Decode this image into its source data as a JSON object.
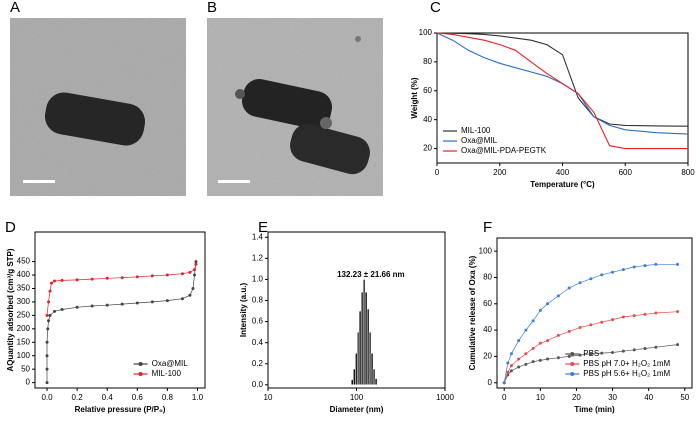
{
  "images": [
    {
      "label": "A"
    },
    {
      "label": "B"
    }
  ],
  "chart_data": [
    {
      "label": "C",
      "type": "line",
      "xlabel": "Temperature (°C)",
      "ylabel": "Weight (%)",
      "xlim": [
        0,
        800
      ],
      "ylim": [
        10,
        100
      ],
      "xticks": [
        0,
        200,
        400,
        600,
        800
      ],
      "yticks": [
        20,
        40,
        60,
        80,
        100
      ],
      "legend": "lower left",
      "marker": false,
      "x": [
        0,
        50,
        100,
        150,
        200,
        250,
        300,
        350,
        400,
        450,
        500,
        550,
        600,
        700,
        800
      ],
      "series": [
        {
          "name": "MIL-100",
          "color": "#333333",
          "values": [
            100,
            99.8,
            99.5,
            99,
            98,
            96.5,
            95,
            92,
            85,
            55,
            42,
            37,
            36,
            35.7,
            35.5
          ]
        },
        {
          "name": "Oxa@MIL",
          "color": "#2a6fc9",
          "values": [
            100,
            95,
            88,
            83,
            79,
            76,
            73,
            70,
            65,
            58,
            42,
            36,
            33,
            31,
            30
          ]
        },
        {
          "name": "Oxa@MIL-PDA-PEGTK",
          "color": "#e8202a",
          "values": [
            100,
            99,
            97,
            95,
            92,
            88,
            80,
            72,
            65,
            58,
            45,
            22,
            20,
            20,
            20
          ]
        }
      ]
    },
    {
      "label": "D",
      "type": "line",
      "xlabel": "Relative pressure (P/P₀)",
      "ylabel": "AQuantity adsorbed (cm³/g STP)",
      "xlim": [
        -0.08,
        1.05
      ],
      "ylim": [
        -20,
        560
      ],
      "xticks": [
        {
          "value": 0,
          "label": "0.0"
        },
        0.2,
        0.4,
        0.6,
        0.8,
        {
          "value": 1,
          "label": "1.0"
        }
      ],
      "yticks": [
        0,
        50,
        100,
        150,
        200,
        250,
        300,
        350,
        400,
        450
      ],
      "legend": "lower right",
      "marker": true,
      "series": [
        {
          "name": "Oxa@MIL",
          "color": "#444444",
          "x": [
            0,
            0,
            0,
            0,
            0.005,
            0.01,
            0.02,
            0.05,
            0.1,
            0.2,
            0.3,
            0.4,
            0.5,
            0.6,
            0.7,
            0.8,
            0.9,
            0.95,
            0.97,
            0.98,
            0.99
          ],
          "values": [
            0,
            50,
            100,
            150,
            200,
            230,
            250,
            265,
            272,
            280,
            285,
            288,
            292,
            296,
            300,
            305,
            312,
            325,
            350,
            400,
            450
          ]
        },
        {
          "name": "MIL-100",
          "color": "#e8202a",
          "x": [
            0,
            0.01,
            0.02,
            0.03,
            0.05,
            0.1,
            0.2,
            0.3,
            0.4,
            0.5,
            0.6,
            0.7,
            0.8,
            0.9,
            0.95,
            0.98,
            0.99
          ],
          "values": [
            250,
            300,
            340,
            370,
            378,
            380,
            382,
            385,
            388,
            390,
            393,
            397,
            400,
            405,
            410,
            420,
            440
          ]
        }
      ]
    },
    {
      "label": "E",
      "type": "histogram",
      "xlabel": "Diameter (nm)",
      "ylabel": "Intensity (a.u.)",
      "xscale": "log",
      "xlim": [
        10,
        1000
      ],
      "ylim": [
        -0.03,
        1.45
      ],
      "xticks": [
        10,
        100,
        1000
      ],
      "yticks": [
        {
          "value": 0,
          "label": "0.0"
        },
        0.2,
        0.4,
        0.6,
        0.8,
        {
          "value": 1,
          "label": "1.0"
        },
        1.2,
        1.4
      ],
      "color": "#111111",
      "annotation": "132.23 ± 21.66 nm",
      "bins": [
        87,
        92,
        97,
        102,
        107,
        113,
        119,
        125,
        132,
        139,
        146,
        154,
        162,
        171
      ],
      "values": [
        0.05,
        0.15,
        0.3,
        0.5,
        0.7,
        0.88,
        1.0,
        0.88,
        0.72,
        0.5,
        0.3,
        0.15,
        0.06
      ]
    },
    {
      "label": "F",
      "type": "line",
      "xlabel": "Time (min)",
      "ylabel": "Cumulative release of Oxa (%)",
      "xlim": [
        -2,
        52
      ],
      "ylim": [
        -4,
        110
      ],
      "xticks": [
        0,
        10,
        20,
        30,
        40,
        50
      ],
      "yticks": [
        0,
        20,
        40,
        60,
        80,
        100
      ],
      "legend": "lower right",
      "marker": true,
      "x": [
        0,
        1,
        2,
        4,
        6,
        8,
        10,
        12,
        15,
        18,
        21,
        24,
        27,
        30,
        33,
        36,
        39,
        42,
        48
      ],
      "series": [
        {
          "name": "PBS",
          "color": "#555555",
          "values": [
            0,
            6,
            9,
            12,
            14,
            16,
            17,
            18,
            19,
            20,
            21,
            22,
            22.5,
            23,
            24,
            25,
            26,
            27,
            29
          ]
        },
        {
          "name": "PBS pH 7.0+ H₂O₂ 1mM",
          "color": "#f0484e",
          "values": [
            0,
            8,
            13,
            18,
            22,
            26,
            30,
            32,
            36,
            39,
            42,
            44,
            46,
            48,
            50,
            51,
            52,
            53,
            54
          ]
        },
        {
          "name": "PBS pH 5.6+ H₂O₂ 1mM",
          "color": "#3d7fd6",
          "values": [
            0,
            15,
            22,
            32,
            40,
            47,
            55,
            60,
            66,
            72,
            76,
            79,
            82,
            84,
            86,
            88,
            89,
            90,
            90
          ]
        }
      ]
    }
  ]
}
